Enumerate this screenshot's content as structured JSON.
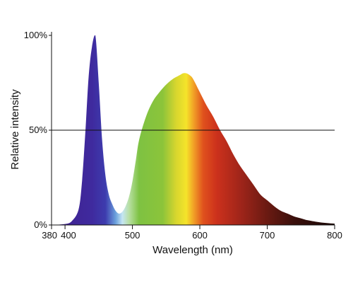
{
  "chart_data": {
    "type": "area",
    "title": "",
    "xlabel": "Wavelength (nm)",
    "ylabel": "Relative intensity",
    "xlim": [
      380,
      800
    ],
    "ylim": [
      0,
      100
    ],
    "x_ticks": [
      {
        "value": 380,
        "label": "380"
      },
      {
        "value": 400,
        "label": "400"
      },
      {
        "value": 500,
        "label": "500"
      },
      {
        "value": 600,
        "label": "600"
      },
      {
        "value": 700,
        "label": "700"
      },
      {
        "value": 800,
        "label": "800"
      }
    ],
    "y_ticks": [
      {
        "value": 0,
        "label": "0%"
      },
      {
        "value": 50,
        "label": "50%"
      },
      {
        "value": 100,
        "label": "100%"
      }
    ],
    "reference_line": {
      "y": 50
    },
    "fill": "visible spectrum colour gradient",
    "series": [
      {
        "x": [
          380,
          400,
          410,
          420,
          425,
          430,
          435,
          440,
          445,
          450,
          455,
          460,
          465,
          470,
          475,
          480,
          485,
          490,
          495,
          500,
          505,
          510,
          520,
          530,
          540,
          550,
          560,
          570,
          575,
          580,
          585,
          590,
          600,
          610,
          620,
          630,
          640,
          650,
          660,
          670,
          680,
          690,
          700,
          710,
          720,
          730,
          740,
          750,
          760,
          780,
          800
        ],
        "y": [
          0,
          0.5,
          2,
          8,
          22,
          48,
          78,
          94,
          100,
          75,
          45,
          26,
          16,
          11,
          7.5,
          6,
          7,
          10,
          15,
          23,
          34,
          45,
          57,
          65,
          70,
          74,
          77,
          79,
          80,
          80,
          79,
          77,
          70,
          63,
          57,
          50,
          44,
          37,
          31,
          26,
          21,
          16,
          13,
          10,
          7.5,
          6,
          4.5,
          3.5,
          2.5,
          1.3,
          0.7
        ]
      }
    ],
    "spectrum_colors": [
      {
        "wl": 380,
        "color": "#3f1f8c"
      },
      {
        "wl": 440,
        "color": "#3f2a9e"
      },
      {
        "wl": 460,
        "color": "#3d3cae"
      },
      {
        "wl": 475,
        "color": "#6a9fdc"
      },
      {
        "wl": 485,
        "color": "#c5e6f4"
      },
      {
        "wl": 495,
        "color": "#b8dfa3"
      },
      {
        "wl": 510,
        "color": "#7ec242"
      },
      {
        "wl": 545,
        "color": "#8cc43a"
      },
      {
        "wl": 565,
        "color": "#d8d62e"
      },
      {
        "wl": 580,
        "color": "#f5e42a"
      },
      {
        "wl": 590,
        "color": "#f2a527"
      },
      {
        "wl": 605,
        "color": "#e0511d"
      },
      {
        "wl": 625,
        "color": "#cc311c"
      },
      {
        "wl": 660,
        "color": "#a0251a"
      },
      {
        "wl": 700,
        "color": "#6a1a12"
      },
      {
        "wl": 740,
        "color": "#3a0f0b"
      },
      {
        "wl": 800,
        "color": "#1a0806"
      }
    ]
  }
}
